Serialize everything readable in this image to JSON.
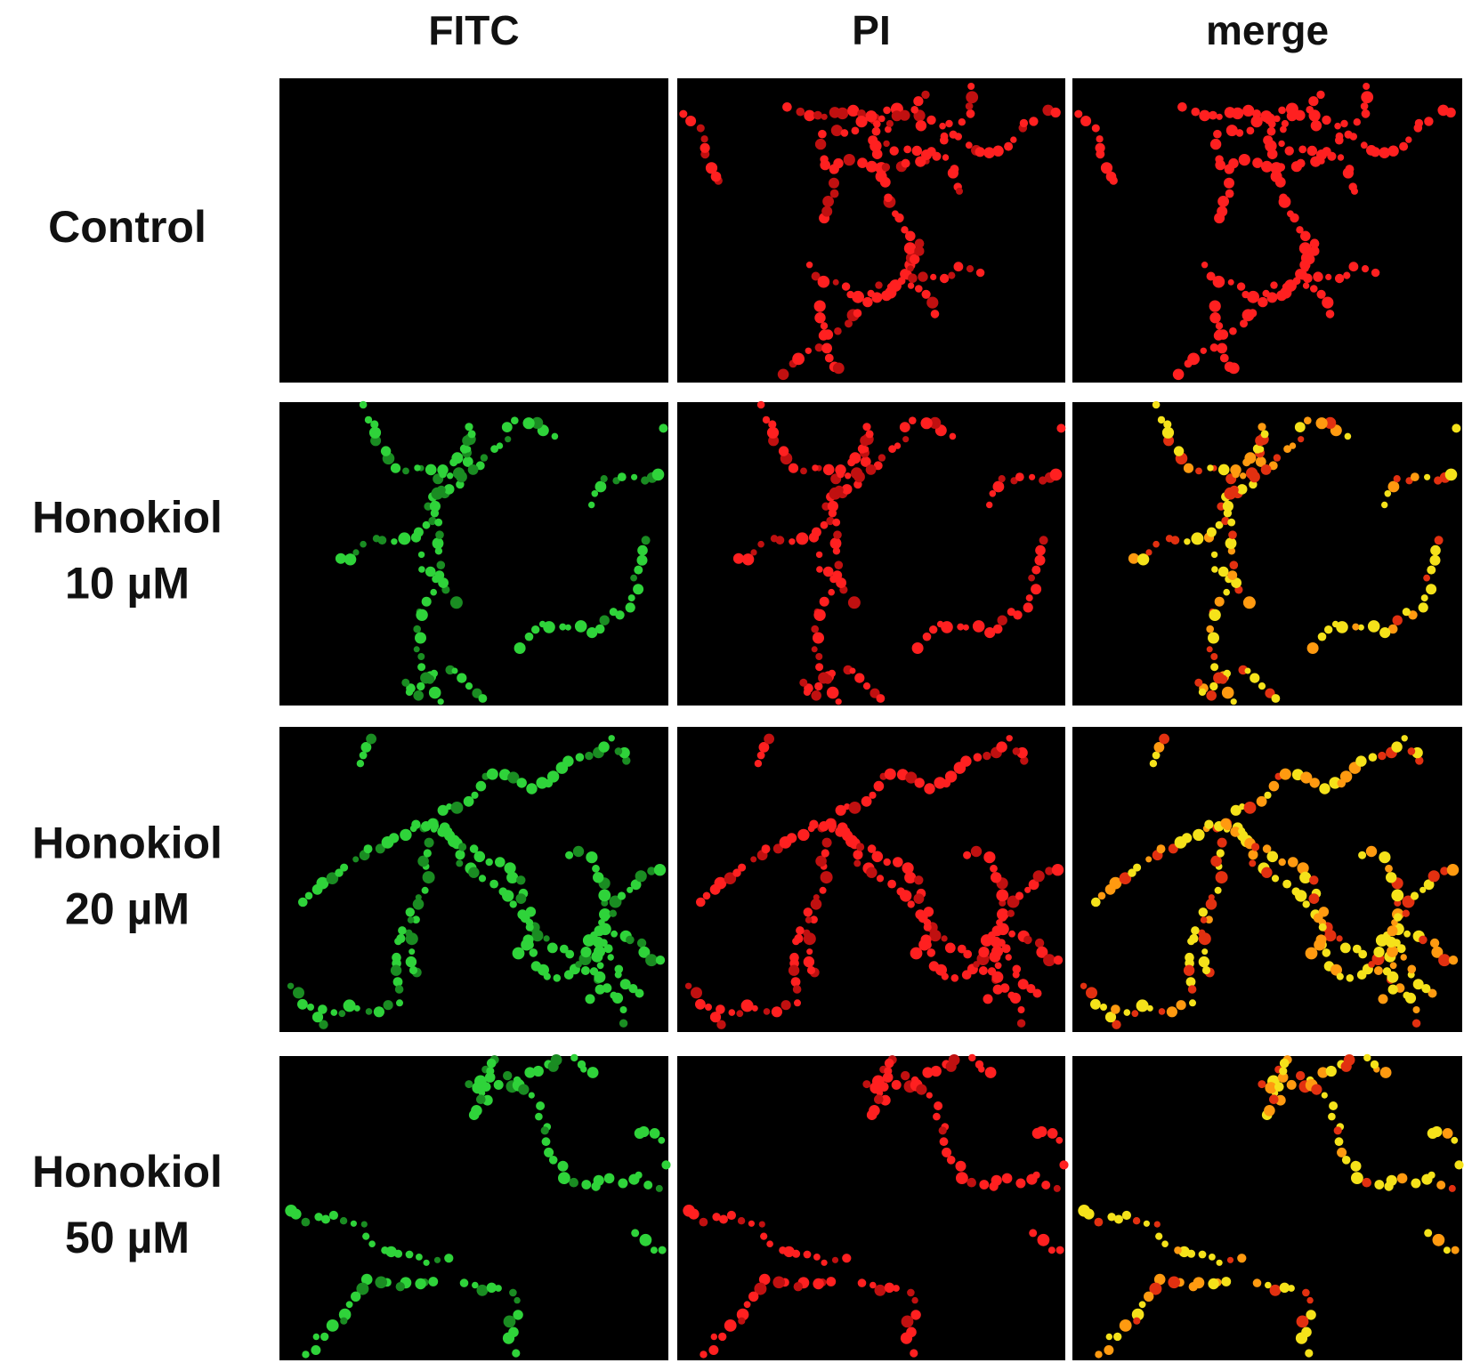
{
  "columns": [
    "FITC",
    "PI",
    "merge"
  ],
  "rows": [
    {
      "label": [
        "Control"
      ]
    },
    {
      "label": [
        "Honokiol",
        "10 µM"
      ]
    },
    {
      "label": [
        "Honokiol",
        "20 µM"
      ]
    },
    {
      "label": [
        "Honokiol",
        "50 µM"
      ]
    }
  ]
}
